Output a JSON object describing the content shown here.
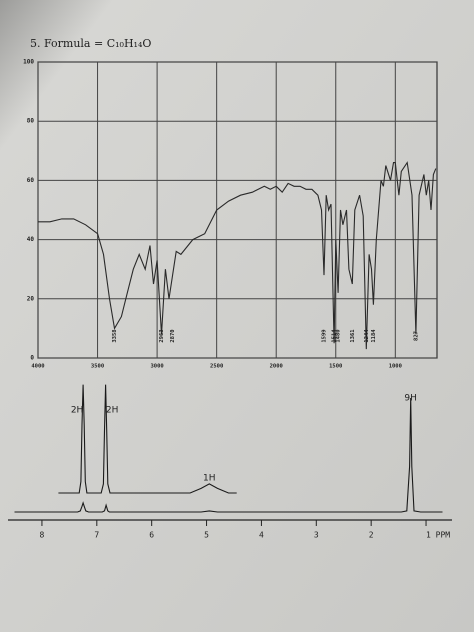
{
  "chart_data": [
    {
      "type": "line",
      "title": "5.  Formula = C₁₀H₁₄O",
      "color": "#2a2a2a",
      "x": [
        4000,
        3900,
        3800,
        3700,
        3600,
        3500,
        3450,
        3400,
        3358,
        3300,
        3250,
        3200,
        3150,
        3100,
        3060,
        3030,
        3000,
        2963,
        2930,
        2900,
        2870,
        2840,
        2800,
        2700,
        2600,
        2500,
        2400,
        2300,
        2200,
        2100,
        2050,
        2000,
        1950,
        1900,
        1850,
        1800,
        1750,
        1700,
        1650,
        1620,
        1599,
        1580,
        1560,
        1540,
        1514,
        1500,
        1480,
        1460,
        1440,
        1410,
        1390,
        1361,
        1340,
        1300,
        1270,
        1244,
        1220,
        1200,
        1184,
        1160,
        1120,
        1100,
        1080,
        1040,
        1015,
        1000,
        970,
        950,
        900,
        860,
        827,
        800,
        760,
        740,
        720,
        700,
        680,
        660
      ],
      "values": [
        46,
        46,
        47,
        47,
        45,
        42,
        35,
        20,
        10,
        14,
        22,
        30,
        35,
        30,
        38,
        25,
        33,
        8,
        30,
        20,
        28,
        36,
        35,
        40,
        42,
        50,
        53,
        55,
        56,
        58,
        57,
        58,
        56,
        59,
        58,
        58,
        57,
        57,
        55,
        50,
        28,
        55,
        50,
        52,
        5,
        40,
        22,
        50,
        45,
        50,
        30,
        25,
        50,
        55,
        48,
        3,
        35,
        30,
        18,
        40,
        60,
        58,
        65,
        60,
        66,
        66,
        55,
        63,
        66,
        55,
        8,
        55,
        62,
        55,
        60,
        50,
        62,
        64
      ],
      "xlim": [
        4000,
        650
      ],
      "xticks": [
        4000,
        3500,
        3000,
        2500,
        2000,
        1500,
        1000
      ],
      "ylim": [
        0,
        100
      ],
      "yticks": [
        0,
        20,
        40,
        60,
        80,
        100
      ],
      "grid": true,
      "peak_labels": [
        3358,
        2963,
        2870,
        1599,
        1514,
        1480,
        1361,
        1244,
        1184,
        827
      ]
    },
    {
      "type": "line",
      "color": "#1a1a1a",
      "x": [
        8.5,
        7.35,
        7.3,
        7.27,
        7.25,
        7.23,
        7.2,
        7.15,
        6.9,
        6.86,
        6.83,
        6.8,
        6.77,
        6.7,
        5.1,
        4.95,
        4.8,
        1.45,
        1.35,
        1.3,
        1.28,
        1.26,
        1.22,
        1.1,
        0.7
      ],
      "values": [
        0,
        0,
        1,
        5,
        8,
        5,
        1,
        0,
        0,
        1,
        6,
        1,
        0,
        0,
        0,
        1,
        0,
        0,
        1,
        40,
        100,
        40,
        1,
        0,
        0
      ],
      "inset": {
        "x": [
          7.7,
          7.32,
          7.29,
          7.27,
          7.25,
          7.23,
          7.21,
          7.18,
          6.92,
          6.88,
          6.86,
          6.84,
          6.82,
          6.8,
          6.76,
          5.3,
          5.1,
          4.95,
          4.8,
          4.6,
          4.45
        ],
        "values": [
          0,
          0,
          10,
          60,
          95,
          60,
          10,
          0,
          0,
          8,
          55,
          95,
          55,
          8,
          0,
          0,
          4,
          8,
          4,
          0,
          0
        ]
      },
      "xlim": [
        8.5,
        0.7
      ],
      "xticks": [
        8,
        7,
        6,
        5,
        4,
        3,
        2,
        {
          "value": 1,
          "label": "1 PPM"
        }
      ],
      "ylim": [
        0,
        100
      ],
      "annotations": [
        {
          "text": "2H",
          "x": 7.25
        },
        {
          "text": "2H",
          "x": 6.83
        },
        {
          "text": "1H",
          "x": 4.95
        },
        {
          "text": "9H",
          "x": 1.28
        }
      ]
    }
  ]
}
